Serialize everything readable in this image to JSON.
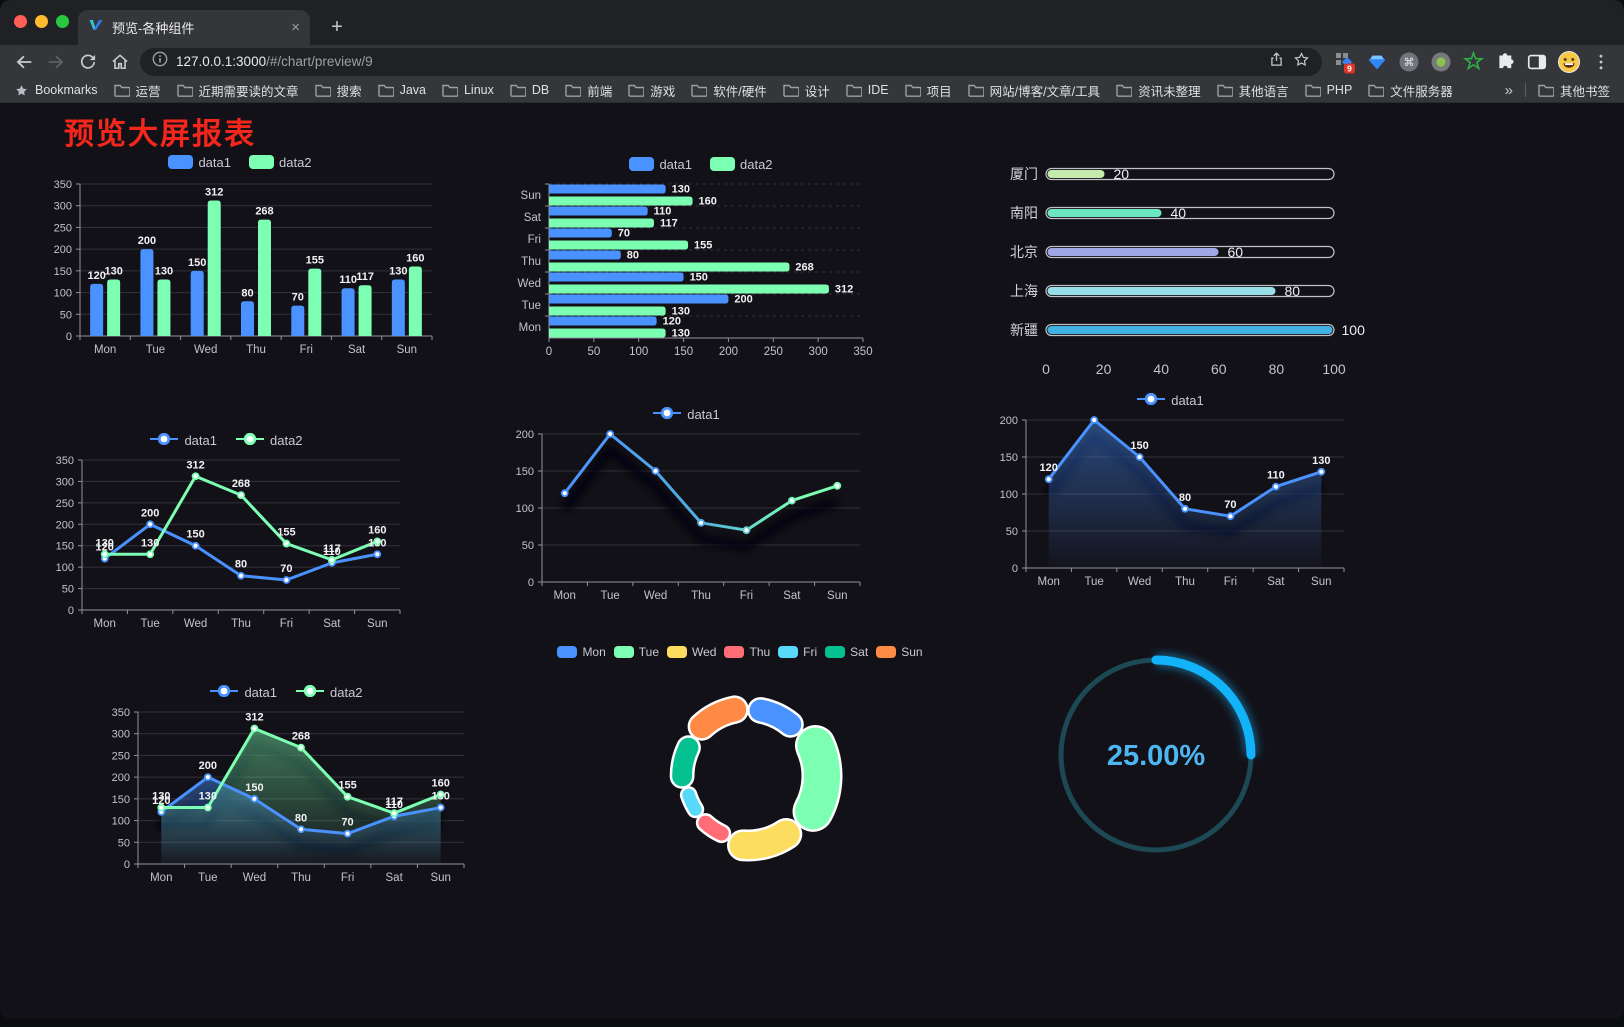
{
  "browser": {
    "traffic_lights": {
      "close": "#ff5f57",
      "minimize": "#febc2e",
      "zoom": "#28c840"
    },
    "tab": {
      "title": "预览-各种组件",
      "close_glyph": "×",
      "new_tab_glyph": "+"
    },
    "address": {
      "host": "127.0.0.1:3000",
      "path": "/#/chart/preview/9",
      "extension_badge": "9"
    },
    "bookmarks_bar": {
      "label": "Bookmarks",
      "folders": [
        "运营",
        "近期需要读的文章",
        "搜索",
        "Java",
        "Linux",
        "DB",
        "前端",
        "游戏",
        "软件/硬件",
        "设计",
        "IDE",
        "项目",
        "网站/博客/文章/工具",
        "资讯未整理",
        "其他语言",
        "PHP",
        "文件服务器"
      ],
      "overflow": "»",
      "other_bookmarks": "其他书签"
    }
  },
  "page": {
    "title": "预览大屏报表",
    "title_color": "#f5271c",
    "background": "#131118"
  },
  "palette": [
    "#4992ff",
    "#7cffb2",
    "#fddd60",
    "#ff6e76",
    "#58d9f9",
    "#05c091",
    "#ff8a45"
  ],
  "chart_data": [
    {
      "id": "grouped-bar",
      "type": "bar",
      "legend_position": "top",
      "grid": true,
      "value_labels": true,
      "categories": [
        "Mon",
        "Tue",
        "Wed",
        "Thu",
        "Fri",
        "Sat",
        "Sun"
      ],
      "series": [
        {
          "name": "data1",
          "color": "#4992ff",
          "values": [
            120,
            200,
            150,
            80,
            70,
            110,
            130
          ]
        },
        {
          "name": "data2",
          "color": "#7cffb2",
          "values": [
            130,
            130,
            312,
            268,
            155,
            117,
            160
          ]
        }
      ],
      "ylim": [
        0,
        350
      ],
      "ytick_step": 50
    },
    {
      "id": "horizontal-bar",
      "type": "bar",
      "orientation": "horizontal",
      "legend_position": "top",
      "value_labels": true,
      "categories": [
        "Mon",
        "Tue",
        "Wed",
        "Thu",
        "Fri",
        "Sat",
        "Sun"
      ],
      "series": [
        {
          "name": "data1",
          "color": "#4992ff",
          "values": [
            120,
            200,
            150,
            80,
            70,
            110,
            130
          ]
        },
        {
          "name": "data2",
          "color": "#7cffb2",
          "values": [
            130,
            130,
            312,
            268,
            155,
            117,
            160
          ]
        }
      ],
      "xlim": [
        0,
        350
      ],
      "xtick_step": 50
    },
    {
      "id": "capsule-bar",
      "type": "bar",
      "orientation": "horizontal",
      "style": "capsule",
      "value_labels": true,
      "categories": [
        "厦门",
        "南阳",
        "北京",
        "上海",
        "新疆"
      ],
      "values": [
        20,
        40,
        60,
        80,
        100
      ],
      "colors": [
        "#c4ebad",
        "#6be6c1",
        "#a0a7e6",
        "#96dee8",
        "#3fb1e3"
      ],
      "xlim": [
        0,
        100
      ],
      "xticks": [
        0,
        20,
        40,
        60,
        80,
        100
      ]
    },
    {
      "id": "two-line",
      "type": "line",
      "legend_position": "top",
      "value_labels": true,
      "shadow": false,
      "categories": [
        "Mon",
        "Tue",
        "Wed",
        "Thu",
        "Fri",
        "Sat",
        "Sun"
      ],
      "series": [
        {
          "name": "data1",
          "color": "#4992ff",
          "values": [
            120,
            200,
            150,
            80,
            70,
            110,
            130
          ]
        },
        {
          "name": "data2",
          "color": "#7cffb2",
          "values": [
            130,
            130,
            312,
            268,
            155,
            117,
            160
          ]
        }
      ],
      "ylim": [
        0,
        350
      ],
      "ytick_step": 50
    },
    {
      "id": "gradient-line",
      "type": "line",
      "legend_position": "top",
      "value_labels": false,
      "shadow": true,
      "categories": [
        "Mon",
        "Tue",
        "Wed",
        "Thu",
        "Fri",
        "Sat",
        "Sun"
      ],
      "series": [
        {
          "name": "data1",
          "color": "#4992ff",
          "color_gradient": [
            "#4992ff",
            "#7cffb2"
          ],
          "values": [
            120,
            200,
            150,
            80,
            70,
            110,
            130
          ]
        }
      ],
      "ylim": [
        0,
        200
      ],
      "ytick_step": 50
    },
    {
      "id": "blue-area",
      "type": "area",
      "legend_position": "top",
      "value_labels": true,
      "shadow": true,
      "categories": [
        "Mon",
        "Tue",
        "Wed",
        "Thu",
        "Fri",
        "Sat",
        "Sun"
      ],
      "series": [
        {
          "name": "data1",
          "color": "#4992ff",
          "values": [
            120,
            200,
            150,
            80,
            70,
            110,
            130
          ]
        }
      ],
      "ylim": [
        0,
        200
      ],
      "ytick_step": 50
    },
    {
      "id": "two-area",
      "type": "area",
      "legend_position": "top",
      "value_labels": true,
      "shadow": true,
      "categories": [
        "Mon",
        "Tue",
        "Wed",
        "Thu",
        "Fri",
        "Sat",
        "Sun"
      ],
      "series": [
        {
          "name": "data1",
          "color": "#4992ff",
          "values": [
            120,
            200,
            150,
            80,
            70,
            110,
            130
          ]
        },
        {
          "name": "data2",
          "color": "#7cffb2",
          "values": [
            130,
            130,
            312,
            268,
            155,
            117,
            160
          ]
        }
      ],
      "ylim": [
        0,
        350
      ],
      "ytick_step": 50
    },
    {
      "id": "rose-donut",
      "type": "pie",
      "subtype": "rose-donut",
      "legend_position": "top",
      "categories": [
        "Mon",
        "Tue",
        "Wed",
        "Thu",
        "Fri",
        "Sat",
        "Sun"
      ],
      "values": [
        120,
        200,
        150,
        80,
        70,
        110,
        130
      ],
      "colors": [
        "#4992ff",
        "#7cffb2",
        "#fddd60",
        "#ff6e76",
        "#58d9f9",
        "#05c091",
        "#ff8a45"
      ]
    },
    {
      "id": "ring-progress",
      "type": "gauge",
      "value": 25,
      "label": "25.00%",
      "color": "#12b3f8",
      "track_color": "#1d4954",
      "text_color": "#4db6f0"
    }
  ]
}
